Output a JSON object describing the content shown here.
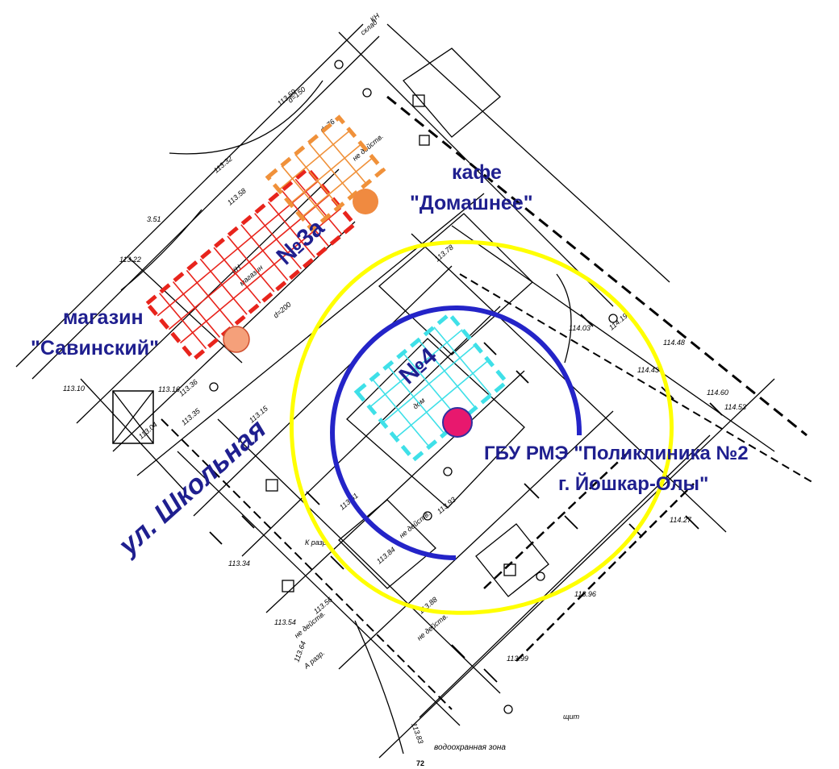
{
  "labels": {
    "cafe_line1": "кафе",
    "cafe_line2": "\"Домашнее\"",
    "shop_line1": "магазин",
    "shop_line2": "\"Савинский\"",
    "clinic_line1": "ГБУ РМЭ \"Поликлиника №2",
    "clinic_line2": "г. Йошкар-Олы\"",
    "street": "ул. Школьная",
    "plot_3a": "№3а",
    "plot_4": "№4",
    "water_zone": "водоохранная зона",
    "page_number": "72"
  },
  "survey_text": {
    "kn_sklad_1": "КН",
    "kn_sklad_2": "склад",
    "kn_magazin_1": "КН",
    "kn_magazin_2": "магазин",
    "dom": "дом",
    "ne_deystv_1": "не действ.",
    "ne_deystv_2": "не действ.",
    "ne_deystv_3": "не действ.",
    "ne_deystv_4": "не действ.",
    "a_razr": "А разр.",
    "k_razr": "К разр.",
    "p_113_16": "113.16",
    "p_113_10": "113.10",
    "p_113_22": "113.22",
    "p_113_51": "3.51",
    "p_113_35": "113.35",
    "p_113_36": "113.36",
    "p_113_04": "113.04",
    "p_113_15": "113.15",
    "p_113_32": "113.32",
    "p_113_58": "113.58",
    "p_113_59": "113.59",
    "p_113_61": "113.61",
    "p_113_84": "113.84",
    "p_113_88": "113.88",
    "p_113_93": "113.93",
    "p_113_99": "113.99",
    "p_113_54": "113.54",
    "p_113_64": "113.64",
    "p_113_83": "113.83",
    "p_113_56": "113.56",
    "p_114_03": "114.03",
    "p_114_19": "114.19",
    "p_114_48": "114.48",
    "p_114_43": "114.43",
    "p_114_53": "114.53",
    "p_114_60": "114.60",
    "p_114_27": "114.27",
    "p_113_96": "113.96",
    "p_113_78": "113.78",
    "p_113_34": "113.34",
    "d150": "d=150",
    "d200": "d=200",
    "d76": "d=76",
    "shchit": "щит"
  },
  "colors": {
    "plot_3a_north": "#f0913a",
    "plot_3a_south": "#e8241c",
    "plot_4": "#3fe0e8",
    "blue_ring": "#2424c8",
    "yellow_ring": "#ffff00",
    "marker_cafe": "#f08a40",
    "marker_shop": "#f5a07a",
    "marker_clinic": "#e8186e",
    "label_text": "#1f1f8f"
  },
  "icons": {
    "cafe_marker": "cafe-marker-icon",
    "shop_marker": "shop-marker-icon",
    "clinic_marker": "clinic-marker-icon"
  }
}
